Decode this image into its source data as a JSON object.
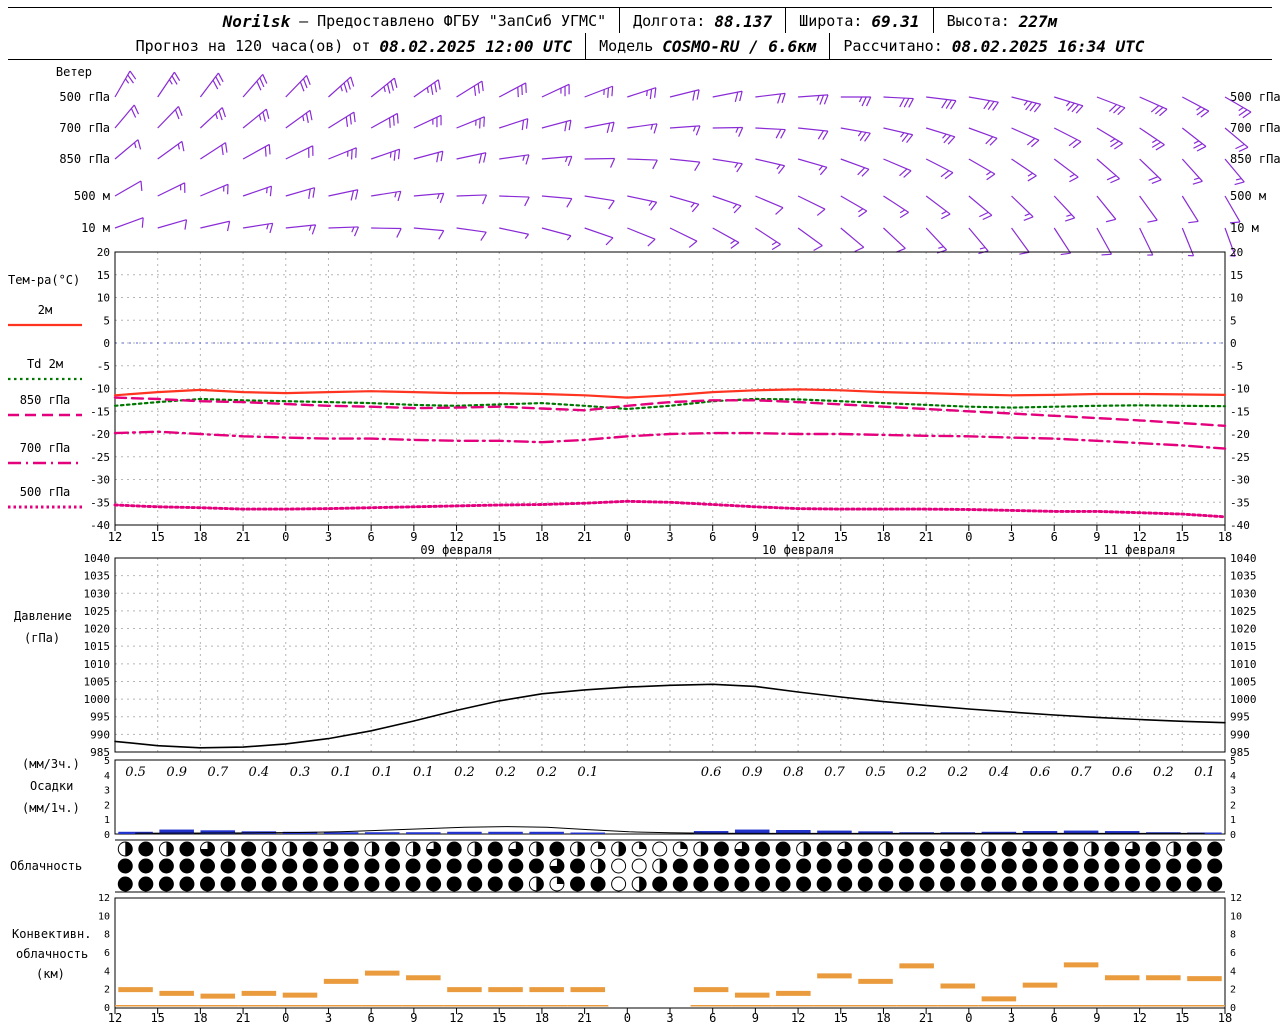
{
  "header": {
    "station": "Norilsk",
    "dash": "—",
    "provider": "Предоставлено ФГБУ \"ЗапСиб УГМС\"",
    "lon_label": "Долгота:",
    "lon": "88.137",
    "lat_label": "Широта:",
    "lat": "69.31",
    "alt_label": "Высота:",
    "alt": "227м"
  },
  "subheader": {
    "prefix": "Прогноз на 120 часа(ов) от",
    "run_time": "08.02.2025 12:00 UTC",
    "model_label": "Модель",
    "model": "COSMO-RU / 6.6км",
    "calc_label": "Рассчитано:",
    "calc_time": "08.02.2025 16:34 UTC"
  },
  "chart_data": {
    "type": "meteogram",
    "colors": {
      "wind": "#8a2bd6",
      "t2m": "#ff3420",
      "td2m": "#007700",
      "magenta": "#e4007c",
      "pressure": "#000000",
      "precip_bar": "#2233cc",
      "precip_line": "#000000",
      "conv": "#ea9b3e",
      "grid": "#b5b5b5",
      "freezing": "#5566dd"
    },
    "x": {
      "tick_labels": [
        "12",
        "15",
        "18",
        "21",
        "0",
        "3",
        "6",
        "9",
        "12",
        "15",
        "18",
        "21",
        "0",
        "3",
        "6",
        "9",
        "12",
        "15",
        "18",
        "21",
        "0",
        "3",
        "6",
        "9",
        "12",
        "15",
        "18"
      ],
      "date_labels": [
        {
          "label": "09 февраля",
          "tick": 8
        },
        {
          "label": "10 февраля",
          "tick": 16
        },
        {
          "label": "11 февраля",
          "tick": 24
        }
      ]
    },
    "wind": {
      "title": "Ветер",
      "levels": [
        {
          "label": "500 гПа",
          "dirs": [
            30,
            34,
            37,
            41,
            44,
            48,
            51,
            55,
            58,
            62,
            65,
            69,
            72,
            76,
            79,
            83,
            86,
            90,
            93,
            97,
            100,
            104,
            107,
            111,
            114,
            118,
            120
          ],
          "speeds": [
            25,
            25,
            30,
            30,
            30,
            35,
            35,
            35,
            30,
            30,
            25,
            25,
            25,
            20,
            20,
            20,
            25,
            25,
            30,
            30,
            30,
            35,
            35,
            30,
            30,
            25,
            25
          ]
        },
        {
          "label": "700 гПа",
          "dirs": [
            40,
            44,
            47,
            51,
            54,
            58,
            61,
            65,
            68,
            72,
            75,
            79,
            82,
            86,
            89,
            93,
            96,
            100,
            103,
            107,
            110,
            114,
            117,
            121,
            124,
            128,
            130
          ],
          "speeds": [
            20,
            20,
            25,
            25,
            25,
            30,
            30,
            25,
            25,
            20,
            20,
            20,
            15,
            15,
            15,
            20,
            20,
            25,
            25,
            25,
            20,
            20,
            20,
            25,
            25,
            25,
            20
          ]
        },
        {
          "label": "850 гПа",
          "dirs": [
            50,
            54,
            57,
            61,
            64,
            68,
            71,
            75,
            78,
            82,
            85,
            89,
            92,
            96,
            99,
            103,
            106,
            110,
            113,
            117,
            120,
            124,
            127,
            131,
            134,
            138,
            140
          ],
          "speeds": [
            15,
            15,
            20,
            20,
            20,
            25,
            25,
            20,
            20,
            15,
            15,
            10,
            10,
            10,
            15,
            15,
            15,
            20,
            20,
            20,
            15,
            15,
            15,
            20,
            20,
            15,
            15
          ]
        },
        {
          "label": "500 м",
          "dirs": [
            60,
            64,
            67,
            71,
            74,
            78,
            81,
            85,
            88,
            92,
            95,
            99,
            102,
            106,
            109,
            113,
            116,
            120,
            123,
            127,
            130,
            134,
            137,
            141,
            144,
            148,
            150
          ],
          "speeds": [
            10,
            15,
            15,
            15,
            20,
            20,
            15,
            15,
            10,
            10,
            10,
            10,
            15,
            15,
            15,
            10,
            10,
            15,
            15,
            15,
            20,
            15,
            15,
            10,
            10,
            10,
            10
          ]
        },
        {
          "label": "10 м",
          "dirs": [
            70,
            74,
            77,
            81,
            84,
            88,
            91,
            95,
            98,
            102,
            105,
            109,
            112,
            116,
            119,
            123,
            126,
            130,
            133,
            137,
            140,
            144,
            147,
            151,
            154,
            158,
            160
          ],
          "speeds": [
            10,
            10,
            10,
            15,
            15,
            15,
            10,
            10,
            10,
            5,
            5,
            10,
            10,
            10,
            15,
            15,
            10,
            10,
            10,
            15,
            15,
            10,
            10,
            10,
            5,
            5,
            5
          ]
        }
      ]
    },
    "temperature": {
      "title": "Тем-ра(°C)",
      "ylim": [
        -40,
        20
      ],
      "ytick_step": 5,
      "freezing_level": 0,
      "series": [
        {
          "name": "2м",
          "style": "solid",
          "color": "t2m",
          "values": [
            -11.5,
            -10.8,
            -10.3,
            -10.8,
            -11,
            -10.8,
            -10.6,
            -10.8,
            -11,
            -11,
            -11.2,
            -11.5,
            -12,
            -11.5,
            -10.8,
            -10.4,
            -10.2,
            -10.4,
            -10.8,
            -11,
            -11.3,
            -11.5,
            -11.4,
            -11.2,
            -11.2,
            -11.3,
            -11.4
          ]
        },
        {
          "name": "Td 2м",
          "style": "dot",
          "color": "td2m",
          "values": [
            -13.8,
            -13,
            -12.3,
            -12.6,
            -12.8,
            -13,
            -13.2,
            -13.6,
            -13.8,
            -13.5,
            -13.2,
            -13.8,
            -14.5,
            -13.8,
            -12.8,
            -12.3,
            -12.4,
            -12.8,
            -13.2,
            -13.6,
            -14,
            -14.2,
            -14,
            -13.8,
            -13.7,
            -13.8,
            -13.9
          ]
        },
        {
          "name": "850 гПа",
          "style": "dash",
          "color": "magenta",
          "values": [
            -12,
            -12.3,
            -12.8,
            -13,
            -13.4,
            -13.8,
            -14,
            -14.3,
            -14.2,
            -14,
            -14.4,
            -14.8,
            -13.8,
            -13,
            -12.6,
            -12.6,
            -13,
            -13.5,
            -14,
            -14.5,
            -15,
            -15.5,
            -16,
            -16.5,
            -17,
            -17.6,
            -18.2
          ]
        },
        {
          "name": "700 гПа",
          "style": "dashdot",
          "color": "magenta",
          "values": [
            -19.8,
            -19.5,
            -20,
            -20.5,
            -20.8,
            -21,
            -21,
            -21.3,
            -21.5,
            -21.5,
            -21.8,
            -21.3,
            -20.5,
            -20,
            -19.8,
            -19.8,
            -20,
            -20,
            -20.2,
            -20.4,
            -20.5,
            -20.8,
            -21,
            -21.5,
            -22,
            -22.5,
            -23.2
          ]
        },
        {
          "name": "500 гПа",
          "style": "densedot",
          "color": "magenta",
          "values": [
            -35.6,
            -36,
            -36.2,
            -36.5,
            -36.5,
            -36.4,
            -36.2,
            -36,
            -35.8,
            -35.6,
            -35.5,
            -35.2,
            -34.8,
            -35,
            -35.5,
            -36,
            -36.4,
            -36.5,
            -36.5,
            -36.5,
            -36.6,
            -36.8,
            -37,
            -37,
            -37.3,
            -37.6,
            -38.2
          ]
        }
      ]
    },
    "pressure": {
      "title_line1": "Давление",
      "title_line2": "(гПа)",
      "ylim": [
        985,
        1040
      ],
      "ytick_step": 5,
      "values": [
        988,
        986.8,
        986.2,
        986.4,
        987.3,
        988.8,
        991,
        993.8,
        996.8,
        999.5,
        1001.5,
        1002.6,
        1003.4,
        1003.9,
        1004.2,
        1003.6,
        1002,
        1000.6,
        999.3,
        998.2,
        997.2,
        996.3,
        995.5,
        994.8,
        994.2,
        993.7,
        993.3
      ]
    },
    "precipitation": {
      "label_top": "(мм/3ч.)",
      "label_mid": "Осадки",
      "label_bot": "(мм/1ч.)",
      "ylim": [
        0,
        5
      ],
      "amounts_3h": [
        "0.5",
        "0.9",
        "0.7",
        "0.4",
        "0.3",
        "0.1",
        "0.1",
        "0.1",
        "0.2",
        "0.2",
        "0.2",
        "0.1",
        "",
        "",
        "0.6",
        "0.9",
        "0.8",
        "0.7",
        "0.5",
        "0.2",
        "0.2",
        "0.4",
        "0.6",
        "0.7",
        "0.6",
        "0.2",
        "0.1"
      ],
      "bars_1h": [
        0.15,
        0.3,
        0.25,
        0.18,
        0.15,
        0.12,
        0.12,
        0.12,
        0.15,
        0.15,
        0.15,
        0.1,
        0,
        0,
        0.2,
        0.3,
        0.27,
        0.23,
        0.18,
        0.12,
        0.12,
        0.15,
        0.2,
        0.23,
        0.2,
        0.12,
        0.1
      ],
      "line": [
        0.05,
        0.06,
        0.07,
        0.08,
        0.1,
        0.15,
        0.25,
        0.35,
        0.45,
        0.5,
        0.45,
        0.3,
        0.15,
        0.08,
        0.05,
        0.04,
        0.04,
        0.04,
        0.04,
        0.04,
        0.04,
        0.04,
        0.04,
        0.04,
        0.04,
        0.04,
        0.04
      ]
    },
    "cloudiness": {
      "title": "Облачность",
      "rows": [
        [
          2,
          4,
          2,
          4,
          3,
          2,
          4,
          2,
          2,
          4,
          3,
          4,
          2,
          4,
          2,
          3,
          4,
          2,
          4,
          3,
          2,
          4,
          2,
          1,
          2,
          1,
          0,
          1,
          2,
          4,
          3,
          4,
          4,
          2,
          4,
          3,
          4,
          2,
          4,
          4,
          3,
          4,
          2,
          4,
          3,
          4,
          4,
          2,
          4,
          3,
          4,
          2,
          4,
          4
        ],
        [
          4,
          4,
          4,
          4,
          4,
          4,
          4,
          4,
          4,
          4,
          4,
          4,
          4,
          4,
          4,
          4,
          4,
          4,
          4,
          4,
          4,
          3,
          4,
          2,
          0,
          0,
          2,
          4,
          4,
          4,
          4,
          4,
          4,
          4,
          4,
          4,
          4,
          4,
          4,
          4,
          4,
          4,
          4,
          4,
          4,
          4,
          4,
          4,
          4,
          4,
          4,
          4,
          4,
          4
        ],
        [
          4,
          4,
          4,
          4,
          4,
          4,
          4,
          4,
          4,
          4,
          4,
          4,
          4,
          4,
          4,
          4,
          4,
          4,
          4,
          4,
          2,
          1,
          4,
          4,
          0,
          2,
          4,
          4,
          4,
          4,
          4,
          4,
          4,
          4,
          4,
          4,
          4,
          4,
          4,
          4,
          4,
          4,
          4,
          4,
          4,
          4,
          4,
          4,
          4,
          4,
          4,
          4,
          4,
          4
        ]
      ]
    },
    "convective": {
      "title_line1": "Конвективн.",
      "title_line2": "облачность",
      "title_line3": "(км)",
      "ylim": [
        0,
        12
      ],
      "yticks": [
        0,
        2,
        4,
        6,
        8,
        10,
        12
      ],
      "tops_km": [
        2.0,
        1.6,
        1.3,
        1.6,
        1.4,
        2.9,
        3.8,
        3.3,
        2.0,
        2.0,
        2.0,
        2.0,
        null,
        null,
        2.0,
        1.4,
        1.6,
        3.5,
        2.9,
        4.6,
        2.4,
        1.0,
        2.5,
        4.7,
        3.3,
        3.3,
        3.2
      ],
      "base_km": 0.25
    }
  }
}
